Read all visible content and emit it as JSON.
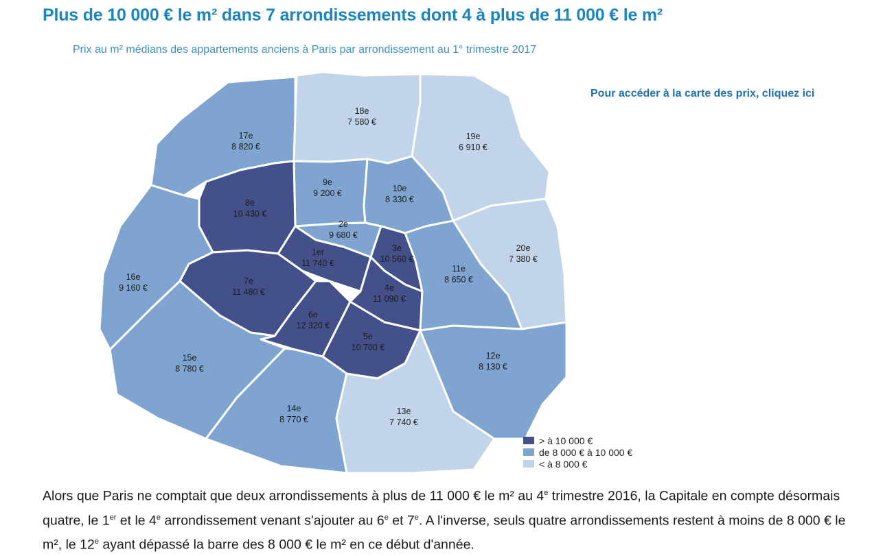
{
  "headline": "Plus de 10 000 € le m² dans 7 arrondissements dont 4 à plus de 11 000 € le m²",
  "subtitle": "Prix au m² médians des appartements anciens à Paris par arrondissement au 1° trimestre 2017",
  "map_link": "Pour accéder à la carte des prix, cliquez ici",
  "colors": {
    "high": "#44508a",
    "mid": "#7ea4cf",
    "low": "#c2d4e9",
    "border": "#ffffff",
    "headline": "#1a86bd"
  },
  "legend": [
    {
      "category": "high",
      "label": "> à 10 000 €"
    },
    {
      "category": "mid",
      "label": "de 8 000 € à 10 000 €"
    },
    {
      "category": "low",
      "label": "< à 8 000 €"
    }
  ],
  "districts": [
    {
      "name": "1er",
      "price": "11 740 €",
      "price_eur": 11740,
      "category": "high"
    },
    {
      "name": "2e",
      "price": "9 680 €",
      "price_eur": 9680,
      "category": "mid"
    },
    {
      "name": "3e",
      "price": "10 560 €",
      "price_eur": 10560,
      "category": "high"
    },
    {
      "name": "4e",
      "price": "11 090 €",
      "price_eur": 11090,
      "category": "high"
    },
    {
      "name": "5e",
      "price": "10 700 €",
      "price_eur": 10700,
      "category": "high"
    },
    {
      "name": "6e",
      "price": "12 320 €",
      "price_eur": 12320,
      "category": "high"
    },
    {
      "name": "7e",
      "price": "11 480 €",
      "price_eur": 11480,
      "category": "high"
    },
    {
      "name": "8e",
      "price": "10 430 €",
      "price_eur": 10430,
      "category": "high"
    },
    {
      "name": "9e",
      "price": "9 200 €",
      "price_eur": 9200,
      "category": "mid"
    },
    {
      "name": "10e",
      "price": "8 330 €",
      "price_eur": 8330,
      "category": "mid"
    },
    {
      "name": "11e",
      "price": "8 650 €",
      "price_eur": 8650,
      "category": "mid"
    },
    {
      "name": "12e",
      "price": "8 130 €",
      "price_eur": 8130,
      "category": "mid"
    },
    {
      "name": "13e",
      "price": "7 740 €",
      "price_eur": 7740,
      "category": "low"
    },
    {
      "name": "14e",
      "price": "8 770 €",
      "price_eur": 8770,
      "category": "mid"
    },
    {
      "name": "15e",
      "price": "8 780 €",
      "price_eur": 8780,
      "category": "mid"
    },
    {
      "name": "16e",
      "price": "9 160 €",
      "price_eur": 9160,
      "category": "mid"
    },
    {
      "name": "17e",
      "price": "8 820 €",
      "price_eur": 8820,
      "category": "mid"
    },
    {
      "name": "18e",
      "price": "7 580 €",
      "price_eur": 7580,
      "category": "low"
    },
    {
      "name": "19e",
      "price": "6 910 €",
      "price_eur": 6910,
      "category": "low"
    },
    {
      "name": "20e",
      "price": "7 380 €",
      "price_eur": 7380,
      "category": "low"
    }
  ],
  "body": {
    "s1": "Alors que Paris ne comptait que deux arrondissements à plus de 11 000 € le m² au 4",
    "sup1": "e",
    "s2": " trimestre 2016, la Capitale en compte désormais quatre, le 1",
    "sup2": "er",
    "s3": " et le 4",
    "sup3": "e",
    "s4": " arrondissement venant s'ajouter au 6",
    "sup4": "e",
    "s5": " et 7",
    "sup5": "e",
    "s6": ". A l'inverse, seuls quatre arrondissements restent à moins de 8 000 € le m², le 12",
    "sup6": "e",
    "s7": " ayant dépassé la barre des 8 000 € le m² en ce début d'année."
  }
}
